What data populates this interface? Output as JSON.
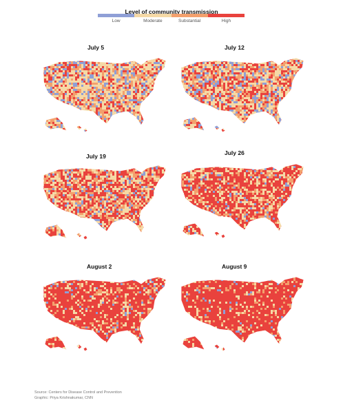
{
  "legend": {
    "title": "Level of community transmission",
    "levels": [
      {
        "label": "Low",
        "color": "#8f9fd6"
      },
      {
        "label": "Moderate",
        "color": "#f5d9a6"
      },
      {
        "label": "Substantial",
        "color": "#f3a06d"
      },
      {
        "label": "High",
        "color": "#e9423d"
      }
    ]
  },
  "panels": [
    {
      "title": "July 5",
      "mix": [
        0.17,
        0.4,
        0.2,
        0.23
      ]
    },
    {
      "title": "July 12",
      "mix": [
        0.15,
        0.35,
        0.2,
        0.3
      ]
    },
    {
      "title": "July 19",
      "mix": [
        0.1,
        0.3,
        0.2,
        0.4
      ]
    },
    {
      "title": "July 26",
      "mix": [
        0.06,
        0.22,
        0.17,
        0.55
      ]
    },
    {
      "title": "August 2",
      "mix": [
        0.04,
        0.14,
        0.12,
        0.7
      ]
    },
    {
      "title": "August 9",
      "mix": [
        0.03,
        0.1,
        0.09,
        0.78
      ]
    }
  ],
  "source": {
    "line1": "Source: Centers for Disease Control and Prevention",
    "line2": "Graphic: Priya Krishnakumar, CNN"
  }
}
